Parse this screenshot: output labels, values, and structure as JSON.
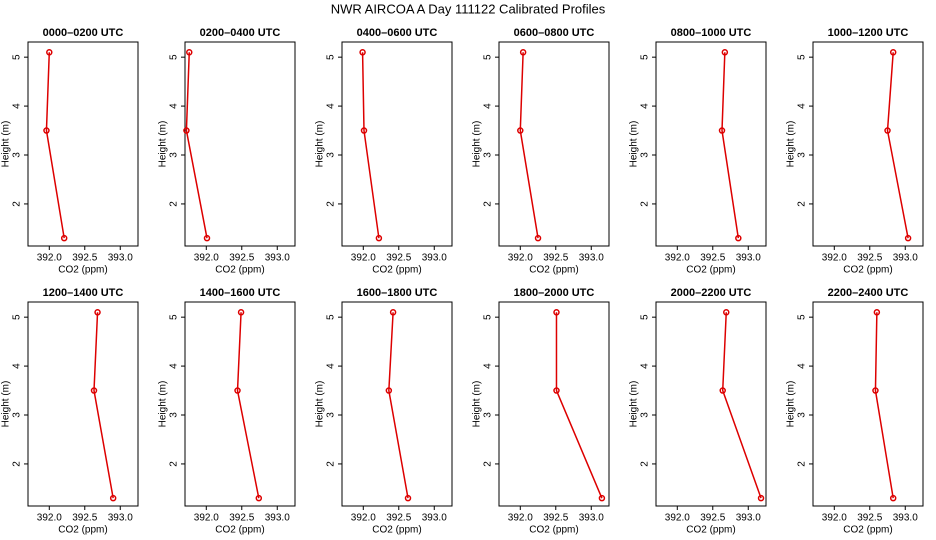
{
  "title": "NWR AIRCOA A  Day 111122  Calibrated Profiles",
  "chart_data": [
    {
      "type": "line",
      "title": "0000–0200 UTC",
      "xlabel": "CO2 (ppm)",
      "ylabel": "Height (m)",
      "color": "#dd0000",
      "x": [
        392.0,
        391.96,
        392.21
      ],
      "values": [
        5.1,
        3.5,
        1.3
      ],
      "xlim": [
        391.7,
        393.25
      ],
      "ylim": [
        1.14,
        5.31
      ],
      "xticks": [
        {
          "value": 392,
          "label": "392.0"
        },
        392.5,
        {
          "value": 393,
          "label": "393.0"
        }
      ],
      "yticks": [
        2,
        3,
        4,
        5
      ]
    },
    {
      "type": "line",
      "title": "0200–0400 UTC",
      "xlabel": "CO2 (ppm)",
      "ylabel": "Height (m)",
      "color": "#dd0000",
      "x": [
        391.76,
        391.72,
        392.01
      ],
      "values": [
        5.1,
        3.5,
        1.3
      ],
      "xlim": [
        391.7,
        393.25
      ],
      "ylim": [
        1.14,
        5.31
      ],
      "xticks": [
        {
          "value": 392,
          "label": "392.0"
        },
        392.5,
        {
          "value": 393,
          "label": "393.0"
        }
      ],
      "yticks": [
        2,
        3,
        4,
        5
      ]
    },
    {
      "type": "line",
      "title": "0400–0600 UTC",
      "xlabel": "CO2 (ppm)",
      "ylabel": "Height (m)",
      "color": "#dd0000",
      "x": [
        391.99,
        392.01,
        392.22
      ],
      "values": [
        5.1,
        3.5,
        1.3
      ],
      "xlim": [
        391.7,
        393.25
      ],
      "ylim": [
        1.14,
        5.31
      ],
      "xticks": [
        {
          "value": 392,
          "label": "392.0"
        },
        392.5,
        {
          "value": 393,
          "label": "393.0"
        }
      ],
      "yticks": [
        2,
        3,
        4,
        5
      ]
    },
    {
      "type": "line",
      "title": "0600–0800 UTC",
      "xlabel": "CO2 (ppm)",
      "ylabel": "Height (m)",
      "color": "#dd0000",
      "x": [
        392.04,
        392.0,
        392.25
      ],
      "values": [
        5.1,
        3.5,
        1.3
      ],
      "xlim": [
        391.7,
        393.25
      ],
      "ylim": [
        1.14,
        5.31
      ],
      "xticks": [
        {
          "value": 392,
          "label": "392.0"
        },
        392.5,
        {
          "value": 393,
          "label": "393.0"
        }
      ],
      "yticks": [
        2,
        3,
        4,
        5
      ]
    },
    {
      "type": "line",
      "title": "0800–1000 UTC",
      "xlabel": "CO2 (ppm)",
      "ylabel": "Height (m)",
      "color": "#dd0000",
      "x": [
        392.67,
        392.63,
        392.86
      ],
      "values": [
        5.1,
        3.5,
        1.3
      ],
      "xlim": [
        391.7,
        393.25
      ],
      "ylim": [
        1.14,
        5.31
      ],
      "xticks": [
        {
          "value": 392,
          "label": "392.0"
        },
        392.5,
        {
          "value": 393,
          "label": "393.0"
        }
      ],
      "yticks": [
        2,
        3,
        4,
        5
      ]
    },
    {
      "type": "line",
      "title": "1000–1200 UTC",
      "xlabel": "CO2 (ppm)",
      "ylabel": "Height (m)",
      "color": "#dd0000",
      "x": [
        392.83,
        392.75,
        393.04
      ],
      "values": [
        5.1,
        3.5,
        1.3
      ],
      "xlim": [
        391.7,
        393.25
      ],
      "ylim": [
        1.14,
        5.31
      ],
      "xticks": [
        {
          "value": 392,
          "label": "392.0"
        },
        392.5,
        {
          "value": 393,
          "label": "393.0"
        }
      ],
      "yticks": [
        2,
        3,
        4,
        5
      ]
    },
    {
      "type": "line",
      "title": "1200–1400 UTC",
      "xlabel": "CO2 (ppm)",
      "ylabel": "Height (m)",
      "color": "#dd0000",
      "x": [
        392.68,
        392.63,
        392.9
      ],
      "values": [
        5.1,
        3.5,
        1.3
      ],
      "xlim": [
        391.7,
        393.25
      ],
      "ylim": [
        1.14,
        5.31
      ],
      "xticks": [
        {
          "value": 392,
          "label": "392.0"
        },
        392.5,
        {
          "value": 393,
          "label": "393.0"
        }
      ],
      "yticks": [
        2,
        3,
        4,
        5
      ]
    },
    {
      "type": "line",
      "title": "1400–1600 UTC",
      "xlabel": "CO2 (ppm)",
      "ylabel": "Height (m)",
      "color": "#dd0000",
      "x": [
        392.49,
        392.44,
        392.74
      ],
      "values": [
        5.1,
        3.5,
        1.3
      ],
      "xlim": [
        391.7,
        393.25
      ],
      "ylim": [
        1.14,
        5.31
      ],
      "xticks": [
        {
          "value": 392,
          "label": "392.0"
        },
        392.5,
        {
          "value": 393,
          "label": "393.0"
        }
      ],
      "yticks": [
        2,
        3,
        4,
        5
      ]
    },
    {
      "type": "line",
      "title": "1600–1800 UTC",
      "xlabel": "CO2 (ppm)",
      "ylabel": "Height (m)",
      "color": "#dd0000",
      "x": [
        392.42,
        392.36,
        392.63
      ],
      "values": [
        5.1,
        3.5,
        1.3
      ],
      "xlim": [
        391.7,
        393.25
      ],
      "ylim": [
        1.14,
        5.31
      ],
      "xticks": [
        {
          "value": 392,
          "label": "392.0"
        },
        392.5,
        {
          "value": 393,
          "label": "393.0"
        }
      ],
      "yticks": [
        2,
        3,
        4,
        5
      ]
    },
    {
      "type": "line",
      "title": "1800–2000 UTC",
      "xlabel": "CO2 (ppm)",
      "ylabel": "Height (m)",
      "color": "#dd0000",
      "x": [
        392.51,
        392.51,
        393.15
      ],
      "values": [
        5.1,
        3.5,
        1.3
      ],
      "xlim": [
        391.7,
        393.25
      ],
      "ylim": [
        1.14,
        5.31
      ],
      "xticks": [
        {
          "value": 392,
          "label": "392.0"
        },
        392.5,
        {
          "value": 393,
          "label": "393.0"
        }
      ],
      "yticks": [
        2,
        3,
        4,
        5
      ]
    },
    {
      "type": "line",
      "title": "2000–2200 UTC",
      "xlabel": "CO2 (ppm)",
      "ylabel": "Height (m)",
      "color": "#dd0000",
      "x": [
        392.69,
        392.64,
        393.18
      ],
      "values": [
        5.1,
        3.5,
        1.3
      ],
      "xlim": [
        391.7,
        393.25
      ],
      "ylim": [
        1.14,
        5.31
      ],
      "xticks": [
        {
          "value": 392,
          "label": "392.0"
        },
        392.5,
        {
          "value": 393,
          "label": "393.0"
        }
      ],
      "yticks": [
        2,
        3,
        4,
        5
      ]
    },
    {
      "type": "line",
      "title": "2200–2400 UTC",
      "xlabel": "CO2 (ppm)",
      "ylabel": "Height (m)",
      "color": "#dd0000",
      "x": [
        392.6,
        392.58,
        392.83
      ],
      "values": [
        5.1,
        3.5,
        1.3
      ],
      "xlim": [
        391.7,
        393.25
      ],
      "ylim": [
        1.14,
        5.31
      ],
      "xticks": [
        {
          "value": 392,
          "label": "392.0"
        },
        392.5,
        {
          "value": 393,
          "label": "393.0"
        }
      ],
      "yticks": [
        2,
        3,
        4,
        5
      ]
    }
  ]
}
